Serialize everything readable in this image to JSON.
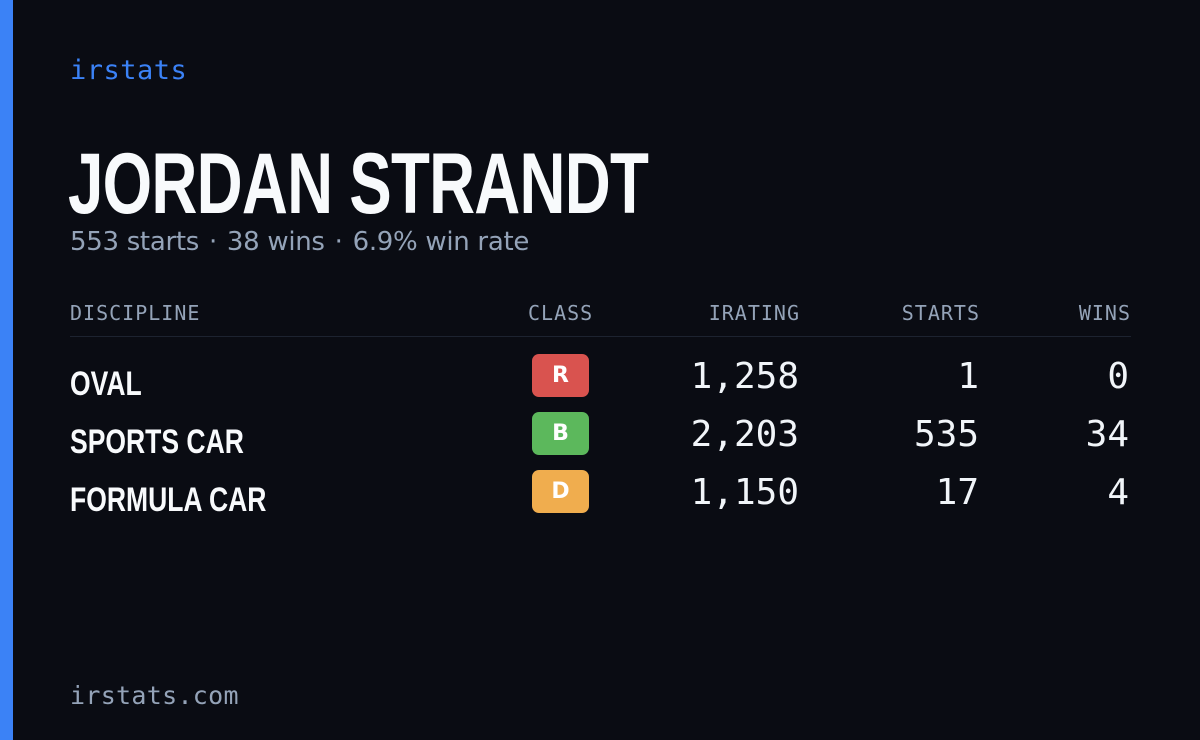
{
  "brand": "irstats",
  "player": {
    "name": "JORDAN STRANDT",
    "starts_text": "553 starts",
    "wins_text": "38 wins",
    "win_rate_text": "6.9% win rate",
    "separator": "·"
  },
  "table": {
    "headers": {
      "discipline": "DISCIPLINE",
      "class": "CLASS",
      "irating": "IRATING",
      "starts": "STARTS",
      "wins": "WINS"
    },
    "rows": [
      {
        "discipline": "OVAL",
        "class": "R",
        "class_color": "#d9534f",
        "irating": "1,258",
        "starts": "1",
        "wins": "0"
      },
      {
        "discipline": "SPORTS CAR",
        "class": "B",
        "class_color": "#5cb85c",
        "irating": "2,203",
        "starts": "535",
        "wins": "34"
      },
      {
        "discipline": "FORMULA CAR",
        "class": "D",
        "class_color": "#f0ad4e",
        "irating": "1,150",
        "starts": "17",
        "wins": "4"
      }
    ]
  },
  "footer": {
    "url": "irstats.com"
  },
  "colors": {
    "accent": "#3b82f6",
    "background": "#0a0c13"
  }
}
